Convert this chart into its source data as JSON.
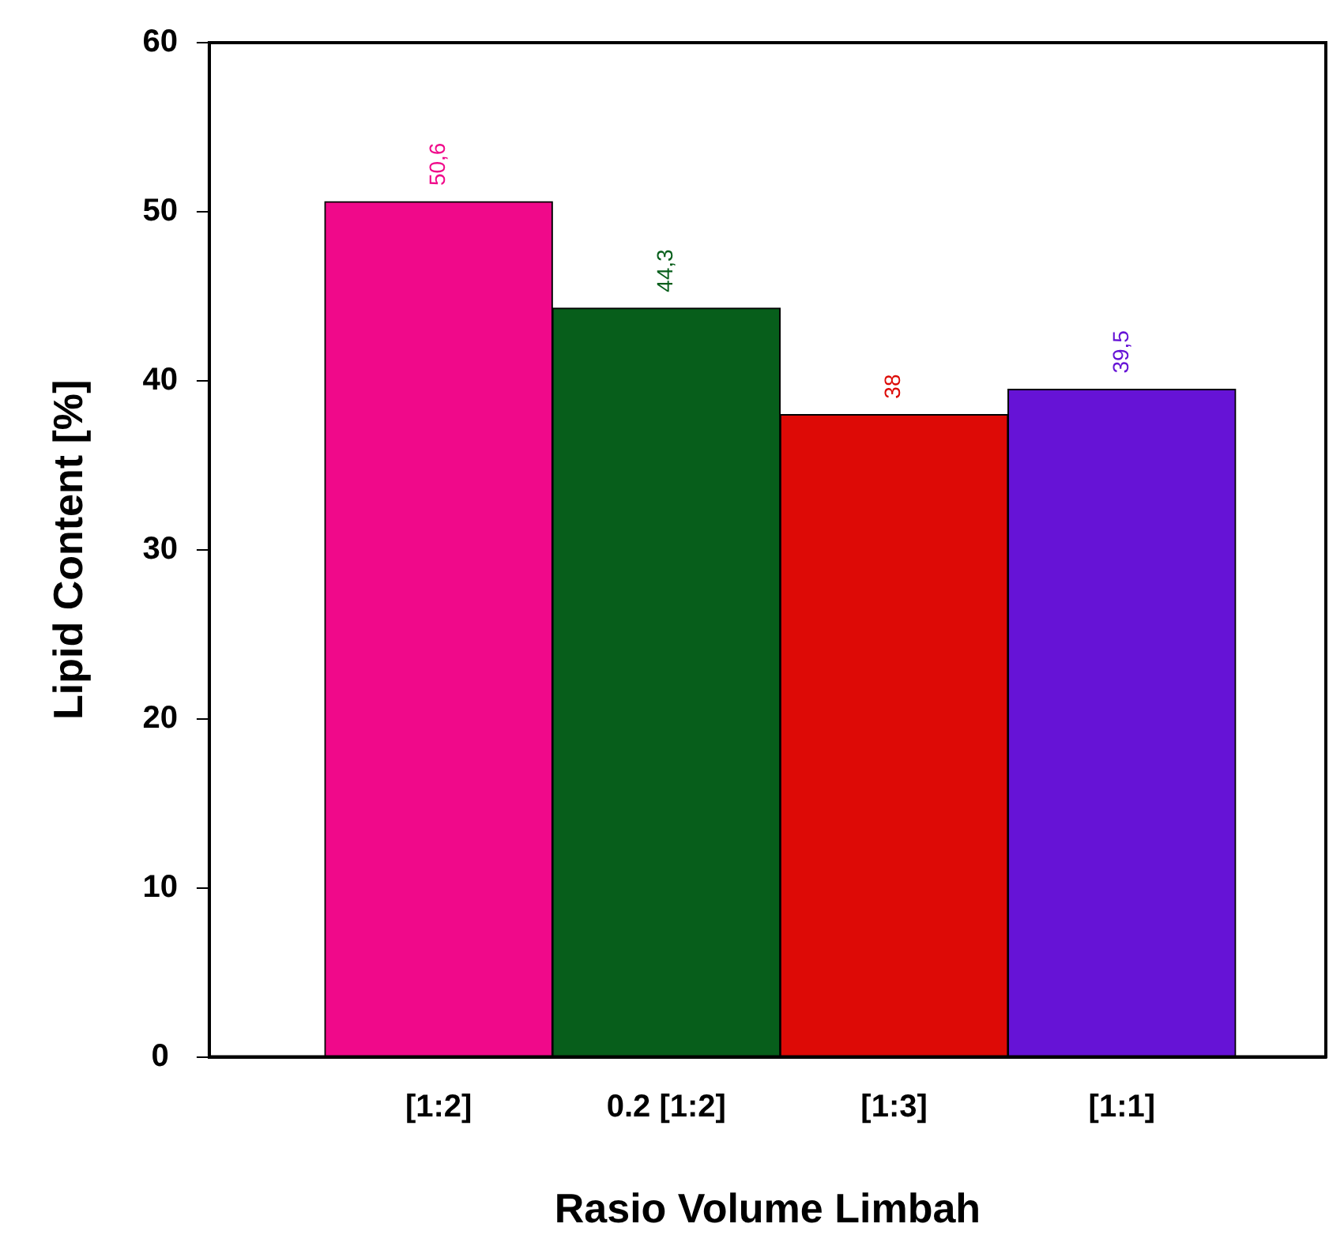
{
  "chart_data": {
    "type": "bar",
    "xlabel": "Rasio Volume Limbah",
    "ylabel": "Lipid Content [%]",
    "categories": [
      "[1:2]",
      "0.2 [1:2]",
      "[1:3]",
      "[1:1]"
    ],
    "values": [
      50.6,
      44.3,
      38,
      39.5
    ],
    "colors": [
      "#f0098a",
      "#075e1b",
      "#dd0a06",
      "#6613d6"
    ],
    "value_labels": [
      "50,6",
      "44,3",
      "38",
      "39,5"
    ],
    "ylim": [
      0,
      60
    ],
    "yticks": [
      0,
      10,
      20,
      30,
      40,
      50,
      60
    ],
    "grid": false,
    "legend": false
  }
}
